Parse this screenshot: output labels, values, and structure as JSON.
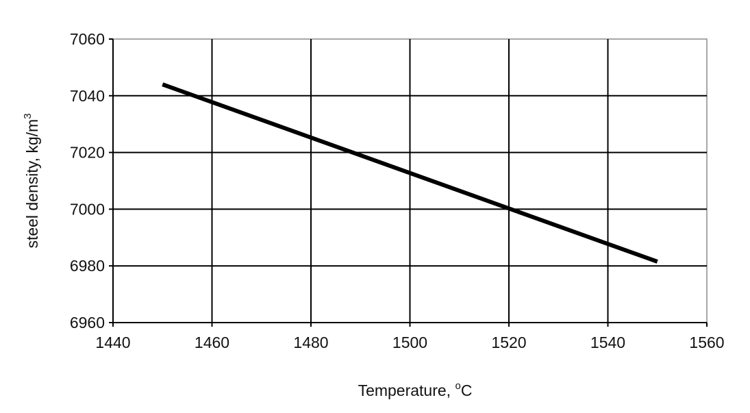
{
  "chart_data": {
    "type": "line",
    "title": "",
    "xlabel": "Temperature, ",
    "xlabel_superscript": "o",
    "xlabel_suffix": "C",
    "ylabel": "steel density,  kg/m",
    "ylabel_superscript": "3",
    "xlim": [
      1440,
      1560
    ],
    "ylim": [
      6960,
      7060
    ],
    "xticks": [
      1440,
      1460,
      1480,
      1500,
      1520,
      1540,
      1560
    ],
    "yticks": [
      6960,
      6980,
      7000,
      7020,
      7040,
      7060
    ],
    "xtick_labels": [
      "1440",
      "1460",
      "1480",
      "1500",
      "1520",
      "1540",
      "1560"
    ],
    "ytick_labels": [
      "6960",
      "6980",
      "7000",
      "7020",
      "7040",
      "7060"
    ],
    "grid": true,
    "series": [
      {
        "x": [
          1450,
          1550
        ],
        "y": [
          7044,
          6981.5
        ],
        "color": "#000000"
      }
    ]
  }
}
